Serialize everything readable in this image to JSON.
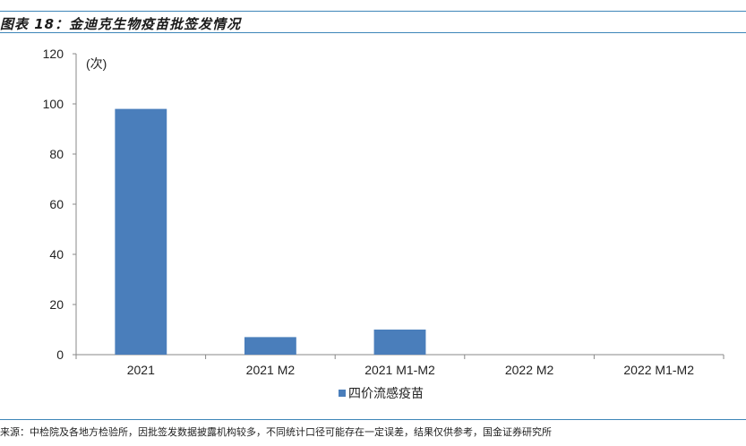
{
  "figure": {
    "title": "图表 18：金迪克生物疫苗批签发情况",
    "source": "来源：中检院及各地方检验所，因批签发数据披露机构较多，不同统计口径可能存在一定误差，结果仅供参考，国金证券研究所"
  },
  "chart_data": {
    "type": "bar",
    "title": "",
    "xlabel": "",
    "ylabel": "(次)",
    "categories": [
      "2021",
      "2021 M2",
      "2021 M1-M2",
      "2022 M2",
      "2022 M1-M2"
    ],
    "series": [
      {
        "name": "四价流感疫苗",
        "values": [
          98,
          7,
          10,
          0,
          0
        ],
        "color": "#4a7ebb"
      }
    ],
    "ylim": [
      0,
      120
    ],
    "yticks": [
      0,
      20,
      40,
      60,
      80,
      100,
      120
    ],
    "grid": false,
    "legend": "bottom-center"
  }
}
